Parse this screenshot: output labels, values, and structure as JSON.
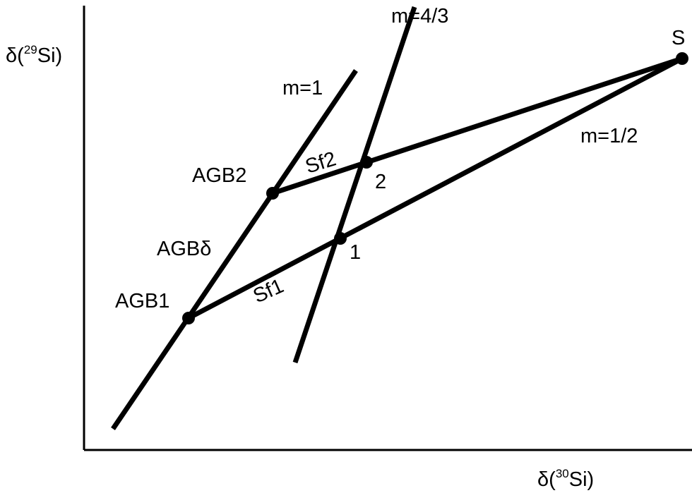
{
  "axes": {
    "y_label": {
      "prefix": "δ(",
      "sup": "29",
      "suffix": "Si)"
    },
    "x_label": {
      "prefix": "δ(",
      "sup": "30",
      "suffix": "Si)"
    }
  },
  "lines": [
    {
      "id": "m1",
      "label": "m=1"
    },
    {
      "id": "m43",
      "label": "m=4/3"
    },
    {
      "id": "m12",
      "label": "m=1/2"
    },
    {
      "id": "sf1",
      "label": "Sf1"
    },
    {
      "id": "sf2",
      "label": "Sf2"
    }
  ],
  "points": [
    {
      "id": "agb1",
      "label": "AGB1"
    },
    {
      "id": "agb2",
      "label": "AGB2"
    },
    {
      "id": "p1",
      "label": "1"
    },
    {
      "id": "p2",
      "label": "2"
    },
    {
      "id": "s",
      "label": "S"
    }
  ],
  "annotations": [
    {
      "id": "agb-delta",
      "label": "AGBδ"
    }
  ]
}
